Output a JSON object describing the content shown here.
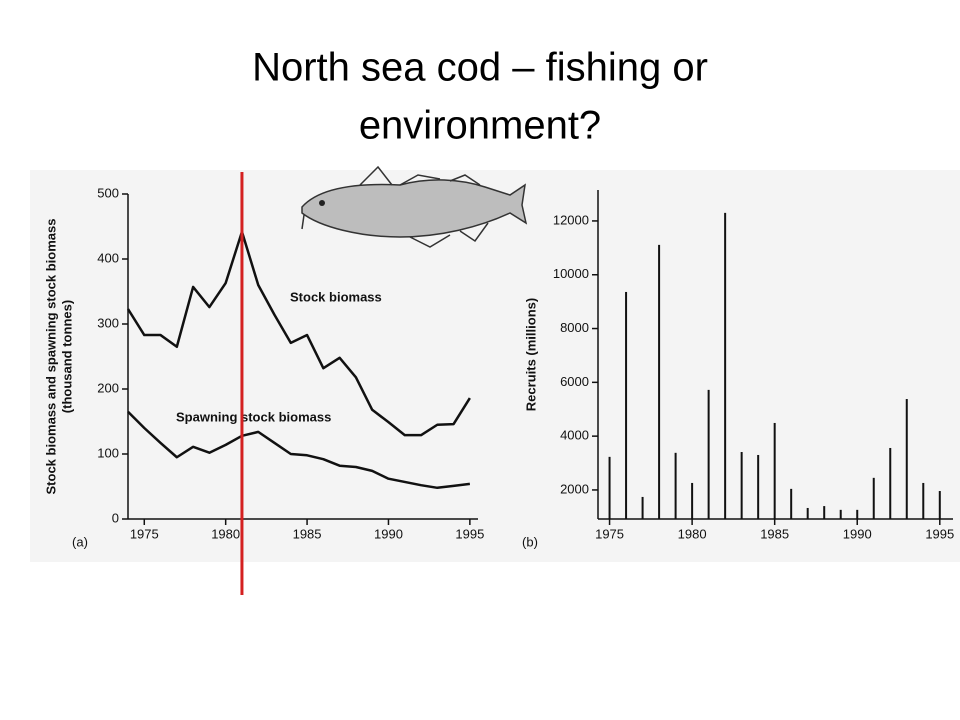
{
  "title_lines": [
    "North sea cod – fishing or",
    "environment?"
  ],
  "chart_data": [
    {
      "type": "line",
      "panel": "(a)",
      "y_label_lines": [
        "Stock biomass and spawning stock biomass",
        "(thousand tonnes)"
      ],
      "x": [
        1974,
        1975,
        1976,
        1977,
        1978,
        1979,
        1980,
        1981,
        1982,
        1983,
        1984,
        1985,
        1986,
        1987,
        1988,
        1989,
        1990,
        1991,
        1992,
        1993,
        1994,
        1995
      ],
      "series": [
        {
          "name": "Stock biomass",
          "color": "#111111",
          "values": [
            323,
            283,
            283,
            265,
            357,
            326,
            363,
            442,
            360,
            314,
            271,
            283,
            232,
            248,
            218,
            168,
            149,
            129,
            129,
            145,
            146,
            186
          ]
        },
        {
          "name": "Spawning stock biomass",
          "color": "#111111",
          "values": [
            165,
            140,
            117,
            95,
            111,
            102,
            114,
            128,
            134,
            117,
            100,
            98,
            92,
            82,
            80,
            74,
            62,
            57,
            52,
            48,
            51,
            54
          ]
        }
      ],
      "xlim": [
        1974,
        1995.5
      ],
      "xticks": [
        1975,
        1980,
        1985,
        1990,
        1995
      ],
      "ylim": [
        0,
        500
      ],
      "yticks": [
        0,
        100,
        200,
        300,
        400,
        500
      ],
      "highlight_x": 1981,
      "highlight_color": "#d42020"
    },
    {
      "type": "bar",
      "panel": "(b)",
      "y_label_lines": [
        "Recruits (millions)"
      ],
      "x": [
        1975,
        1976,
        1977,
        1978,
        1979,
        1980,
        1981,
        1982,
        1983,
        1984,
        1985,
        1986,
        1987,
        1988,
        1989,
        1990,
        1991,
        1992,
        1993,
        1994,
        1995
      ],
      "values": [
        3230,
        9360,
        1740,
        11110,
        3380,
        2260,
        5720,
        12300,
        3410,
        3300,
        4490,
        2040,
        1330,
        1400,
        1260,
        1260,
        2450,
        3560,
        5380,
        2260,
        1960
      ],
      "color": "#111111",
      "xlim": [
        1974.3,
        1995.8
      ],
      "xticks": [
        1975,
        1980,
        1985,
        1990,
        1995
      ],
      "ylim": [
        920,
        13150
      ],
      "yticks": [
        2000,
        4000,
        6000,
        8000,
        10000,
        12000
      ]
    }
  ]
}
